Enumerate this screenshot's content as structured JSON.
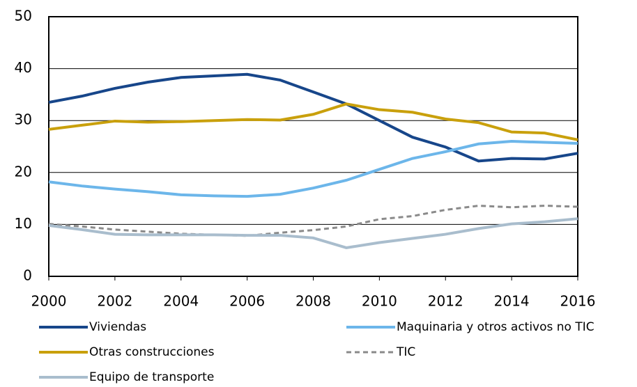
{
  "chart_data": {
    "type": "line",
    "x": [
      2000,
      2001,
      2002,
      2003,
      2004,
      2005,
      2006,
      2007,
      2008,
      2009,
      2010,
      2011,
      2012,
      2013,
      2014,
      2015,
      2016
    ],
    "xlim": [
      2000,
      2016
    ],
    "xticks": [
      2000,
      2002,
      2004,
      2006,
      2008,
      2010,
      2012,
      2014,
      2016
    ],
    "ylim": [
      0,
      50
    ],
    "yticks": [
      0,
      10,
      20,
      30,
      40,
      50
    ],
    "grid": true,
    "series": [
      {
        "name": "Viviendas",
        "color": "#17468a",
        "dash": false,
        "values": [
          33.5,
          34.7,
          36.2,
          37.4,
          38.3,
          38.6,
          38.9,
          37.8,
          35.5,
          33.2,
          30.0,
          26.8,
          24.9,
          22.2,
          22.7,
          22.6,
          23.7
        ]
      },
      {
        "name": "Maquinaria y otros activos no TIC",
        "color": "#6cb6ea",
        "dash": false,
        "values": [
          18.2,
          17.4,
          16.8,
          16.3,
          15.7,
          15.5,
          15.4,
          15.8,
          17.0,
          18.5,
          20.6,
          22.7,
          24.0,
          25.5,
          26.0,
          25.8,
          25.6
        ]
      },
      {
        "name": "Otras construcciones",
        "color": "#c9a00c",
        "dash": false,
        "values": [
          28.3,
          29.1,
          29.9,
          29.7,
          29.8,
          30.0,
          30.2,
          30.1,
          31.2,
          33.2,
          32.1,
          31.6,
          30.3,
          29.6,
          27.8,
          27.6,
          26.3
        ]
      },
      {
        "name": "TIC",
        "color": "#8a8a8a",
        "dash": true,
        "values": [
          10.1,
          9.6,
          9.0,
          8.6,
          8.2,
          8.0,
          7.8,
          8.4,
          8.9,
          9.6,
          11.0,
          11.6,
          12.8,
          13.6,
          13.3,
          13.6,
          13.4
        ]
      },
      {
        "name": "Equipo de transporte",
        "color": "#a9bdcd",
        "dash": false,
        "values": [
          9.8,
          9.0,
          8.1,
          8.0,
          8.0,
          8.0,
          7.9,
          7.9,
          7.4,
          5.5,
          6.5,
          7.3,
          8.1,
          9.2,
          10.1,
          10.5,
          11.1
        ]
      }
    ]
  }
}
